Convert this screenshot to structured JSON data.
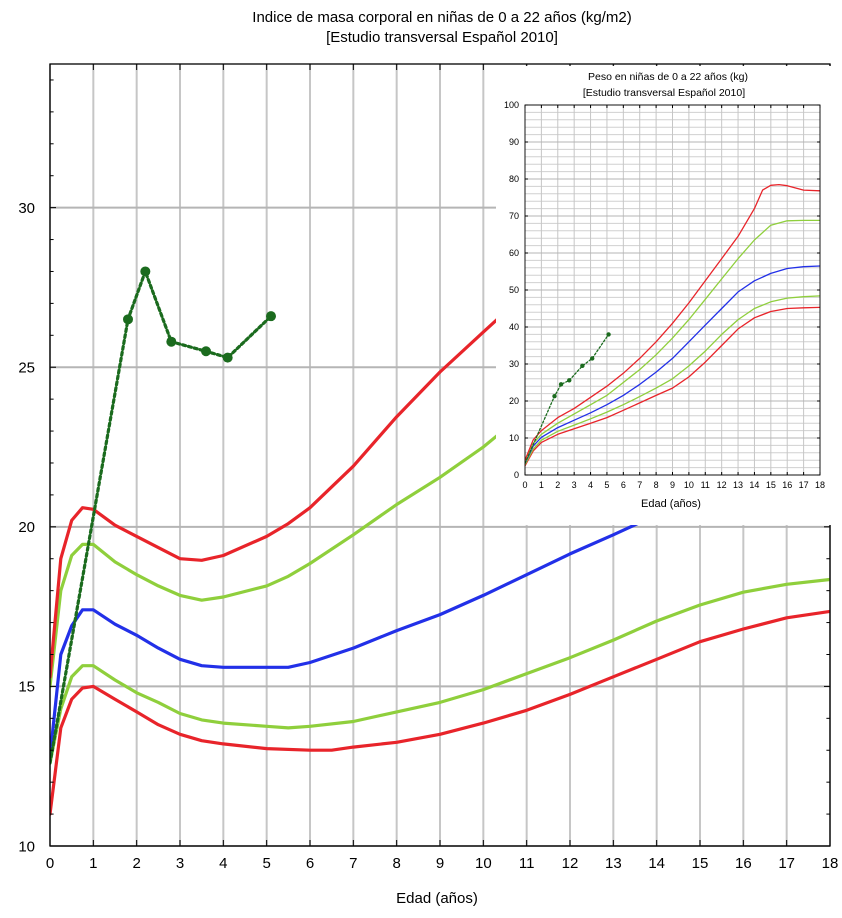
{
  "chart_data": [
    {
      "id": "main",
      "type": "line",
      "title": "Indice de masa corporal en niñas de 0 a 22 años (kg/m2)",
      "subtitle": "[Estudio transversal Español 2010]",
      "xlabel": "Edad (años)",
      "ylabel": "",
      "xlim": [
        0,
        18
      ],
      "ylim": [
        10,
        34.5
      ],
      "x_ticks": [
        0,
        1,
        2,
        3,
        4,
        5,
        6,
        7,
        8,
        9,
        10,
        11,
        12,
        13,
        14,
        15,
        16,
        17,
        18
      ],
      "y_ticks": [
        10,
        15,
        20,
        25,
        30
      ],
      "grid": true,
      "series": [
        {
          "color": "#e8242a",
          "points": [
            [
              0,
              11
            ],
            [
              0.25,
              13.7
            ],
            [
              0.5,
              14.6
            ],
            [
              0.75,
              14.95
            ],
            [
              1,
              15
            ],
            [
              1.5,
              14.6
            ],
            [
              2,
              14.2
            ],
            [
              2.5,
              13.8
            ],
            [
              3,
              13.5
            ],
            [
              3.5,
              13.3
            ],
            [
              4,
              13.2
            ],
            [
              5,
              13.05
            ],
            [
              6,
              13
            ],
            [
              6.5,
              13
            ],
            [
              7,
              13.1
            ],
            [
              8,
              13.25
            ],
            [
              9,
              13.5
            ],
            [
              10,
              13.85
            ],
            [
              11,
              14.25
            ],
            [
              12,
              14.75
            ],
            [
              13,
              15.3
            ],
            [
              14,
              15.85
            ],
            [
              15,
              16.4
            ],
            [
              16,
              16.8
            ],
            [
              17,
              17.15
            ],
            [
              18,
              17.35
            ]
          ]
        },
        {
          "color": "#8fcf3c",
          "points": [
            [
              0,
              12.6
            ],
            [
              0.25,
              14.3
            ],
            [
              0.5,
              15.3
            ],
            [
              0.75,
              15.65
            ],
            [
              1,
              15.65
            ],
            [
              1.5,
              15.2
            ],
            [
              2,
              14.8
            ],
            [
              2.5,
              14.5
            ],
            [
              3,
              14.15
            ],
            [
              3.5,
              13.95
            ],
            [
              4,
              13.85
            ],
            [
              5,
              13.75
            ],
            [
              5.5,
              13.7
            ],
            [
              6,
              13.75
            ],
            [
              7,
              13.9
            ],
            [
              8,
              14.2
            ],
            [
              9,
              14.5
            ],
            [
              10,
              14.9
            ],
            [
              11,
              15.4
            ],
            [
              12,
              15.9
            ],
            [
              13,
              16.45
            ],
            [
              14,
              17.05
            ],
            [
              15,
              17.55
            ],
            [
              16,
              17.95
            ],
            [
              17,
              18.2
            ],
            [
              18,
              18.35
            ]
          ]
        },
        {
          "color": "#2230e8",
          "points": [
            [
              0,
              12.8
            ],
            [
              0.25,
              16
            ],
            [
              0.5,
              16.9
            ],
            [
              0.75,
              17.4
            ],
            [
              1,
              17.4
            ],
            [
              1.5,
              16.95
            ],
            [
              2,
              16.6
            ],
            [
              2.5,
              16.2
            ],
            [
              3,
              15.85
            ],
            [
              3.5,
              15.65
            ],
            [
              4,
              15.6
            ],
            [
              5,
              15.6
            ],
            [
              5.5,
              15.6
            ],
            [
              6,
              15.75
            ],
            [
              7,
              16.2
            ],
            [
              8,
              16.75
            ],
            [
              9,
              17.25
            ],
            [
              10,
              17.85
            ],
            [
              11,
              18.5
            ],
            [
              12,
              19.15
            ],
            [
              13,
              19.75
            ],
            [
              13.8,
              20.25
            ],
            [
              14.3,
              20.5
            ]
          ]
        },
        {
          "color": "#8fcf3c",
          "points": [
            [
              0,
              15
            ],
            [
              0.25,
              18
            ],
            [
              0.5,
              19.1
            ],
            [
              0.75,
              19.45
            ],
            [
              1,
              19.45
            ],
            [
              1.5,
              18.9
            ],
            [
              2,
              18.5
            ],
            [
              2.5,
              18.15
            ],
            [
              3,
              17.85
            ],
            [
              3.5,
              17.7
            ],
            [
              4,
              17.8
            ],
            [
              5,
              18.15
            ],
            [
              5.5,
              18.45
            ],
            [
              6,
              18.85
            ],
            [
              7,
              19.75
            ],
            [
              8,
              20.7
            ],
            [
              9,
              21.55
            ],
            [
              10,
              22.5
            ],
            [
              10.4,
              22.95
            ]
          ]
        },
        {
          "color": "#e8242a",
          "points": [
            [
              0,
              15.3
            ],
            [
              0.25,
              19
            ],
            [
              0.5,
              20.2
            ],
            [
              0.75,
              20.6
            ],
            [
              1,
              20.55
            ],
            [
              1.5,
              20.05
            ],
            [
              2,
              19.7
            ],
            [
              2.5,
              19.35
            ],
            [
              3,
              19
            ],
            [
              3.5,
              18.95
            ],
            [
              4,
              19.1
            ],
            [
              5,
              19.7
            ],
            [
              5.5,
              20.1
            ],
            [
              6,
              20.6
            ],
            [
              7,
              21.9
            ],
            [
              8,
              23.45
            ],
            [
              9,
              24.85
            ],
            [
              10,
              26.1
            ],
            [
              10.4,
              26.6
            ]
          ]
        },
        {
          "color": "#1b6b1e",
          "dashed": true,
          "markers": true,
          "points": [
            [
              0,
              12.6
            ],
            [
              1.8,
              26.5
            ],
            [
              2.2,
              28
            ],
            [
              2.8,
              25.8
            ],
            [
              3.6,
              25.5
            ],
            [
              4.1,
              25.3
            ],
            [
              5.1,
              26.6
            ]
          ]
        }
      ]
    },
    {
      "id": "inset",
      "type": "line",
      "title": "Peso en niñas de 0 a 22 años (kg)",
      "subtitle": "[Estudio transversal Español 2010]",
      "xlabel": "Edad (años)",
      "ylabel": "",
      "xlim": [
        0,
        18
      ],
      "ylim": [
        0,
        100
      ],
      "x_ticks": [
        0,
        1,
        2,
        3,
        4,
        5,
        6,
        7,
        8,
        9,
        10,
        11,
        12,
        13,
        14,
        15,
        16,
        17,
        18
      ],
      "y_ticks": [
        0,
        10,
        20,
        30,
        40,
        50,
        60,
        70,
        80,
        90,
        100
      ],
      "grid": true,
      "series": [
        {
          "color": "#e8242a",
          "points": [
            [
              0,
              2.5
            ],
            [
              0.5,
              6.5
            ],
            [
              1,
              8.8
            ],
            [
              2,
              11
            ],
            [
              3,
              12.5
            ],
            [
              4,
              14
            ],
            [
              5,
              15.5
            ],
            [
              6,
              17.5
            ],
            [
              7,
              19.5
            ],
            [
              8,
              21.5
            ],
            [
              9,
              23.5
            ],
            [
              10,
              26.5
            ],
            [
              11,
              30.5
            ],
            [
              12,
              35
            ],
            [
              13,
              39.5
            ],
            [
              14,
              42.5
            ],
            [
              15,
              44.2
            ],
            [
              16,
              45
            ],
            [
              17,
              45.2
            ],
            [
              18,
              45.3
            ]
          ]
        },
        {
          "color": "#8fcf3c",
          "points": [
            [
              0,
              2.8
            ],
            [
              0.5,
              7
            ],
            [
              1,
              9.4
            ],
            [
              2,
              11.8
            ],
            [
              3,
              13.5
            ],
            [
              4,
              15.2
            ],
            [
              5,
              17
            ],
            [
              6,
              19
            ],
            [
              7,
              21.2
            ],
            [
              8,
              23.5
            ],
            [
              9,
              26
            ],
            [
              10,
              29.5
            ],
            [
              11,
              33.5
            ],
            [
              12,
              38
            ],
            [
              13,
              42
            ],
            [
              14,
              45
            ],
            [
              15,
              46.8
            ],
            [
              16,
              47.8
            ],
            [
              17,
              48.2
            ],
            [
              18,
              48.4
            ]
          ]
        },
        {
          "color": "#2230e8",
          "points": [
            [
              0,
              3.2
            ],
            [
              0.5,
              7.8
            ],
            [
              1,
              10.2
            ],
            [
              2,
              12.8
            ],
            [
              3,
              14.8
            ],
            [
              4,
              16.8
            ],
            [
              5,
              19
            ],
            [
              6,
              21.5
            ],
            [
              7,
              24.5
            ],
            [
              8,
              27.8
            ],
            [
              9,
              31.5
            ],
            [
              10,
              36
            ],
            [
              11,
              40.5
            ],
            [
              12,
              45
            ],
            [
              13,
              49.5
            ],
            [
              14,
              52.5
            ],
            [
              15,
              54.5
            ],
            [
              16,
              55.8
            ],
            [
              17,
              56.3
            ],
            [
              18,
              56.5
            ]
          ]
        },
        {
          "color": "#8fcf3c",
          "points": [
            [
              0,
              3.6
            ],
            [
              0.5,
              8.5
            ],
            [
              1,
              11
            ],
            [
              2,
              14
            ],
            [
              3,
              16.5
            ],
            [
              4,
              19
            ],
            [
              5,
              21.5
            ],
            [
              6,
              25
            ],
            [
              7,
              28.5
            ],
            [
              8,
              32.5
            ],
            [
              9,
              37
            ],
            [
              10,
              42
            ],
            [
              11,
              47.5
            ],
            [
              12,
              53
            ],
            [
              13,
              58.5
            ],
            [
              14,
              63.5
            ],
            [
              15,
              67.5
            ],
            [
              16,
              68.7
            ],
            [
              17,
              68.8
            ],
            [
              18,
              68.8
            ]
          ]
        },
        {
          "color": "#e8242a",
          "points": [
            [
              0,
              4
            ],
            [
              0.5,
              9.5
            ],
            [
              1,
              12
            ],
            [
              2,
              15.5
            ],
            [
              3,
              18
            ],
            [
              4,
              21
            ],
            [
              5,
              24
            ],
            [
              6,
              27.5
            ],
            [
              7,
              31.5
            ],
            [
              8,
              36
            ],
            [
              9,
              41
            ],
            [
              10,
              46.5
            ],
            [
              11,
              52.5
            ],
            [
              12,
              58.5
            ],
            [
              13,
              64.5
            ],
            [
              14,
              72
            ],
            [
              14.5,
              77
            ],
            [
              15,
              78.3
            ],
            [
              15.5,
              78.5
            ],
            [
              16,
              78.2
            ],
            [
              17,
              77
            ],
            [
              18,
              76.8
            ]
          ]
        },
        {
          "color": "#1b6b1e",
          "dashed": true,
          "markers": true,
          "points": [
            [
              0,
              3.2
            ],
            [
              1.8,
              21.3
            ],
            [
              2.2,
              24.5
            ],
            [
              2.7,
              25.6
            ],
            [
              3.5,
              29.5
            ],
            [
              4.1,
              31.5
            ],
            [
              5.1,
              38
            ]
          ]
        }
      ]
    }
  ]
}
